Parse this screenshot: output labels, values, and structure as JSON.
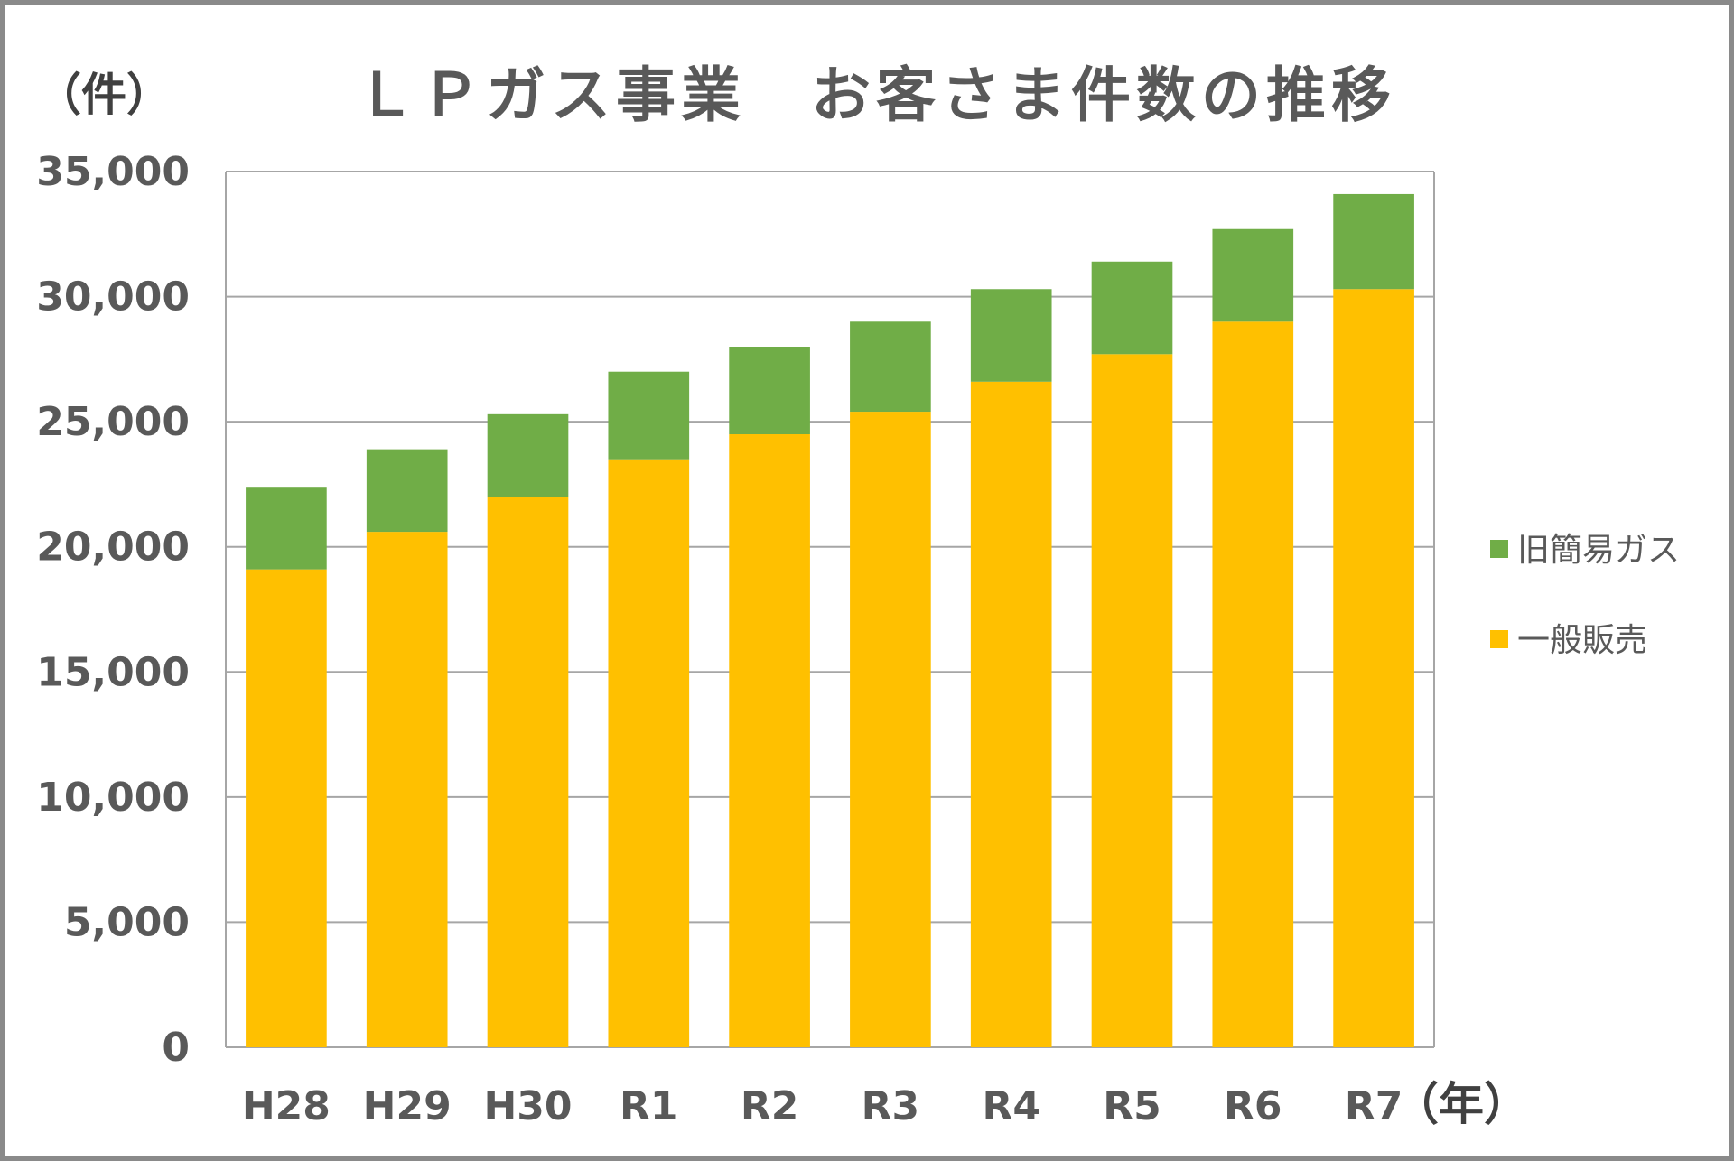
{
  "chart_data": {
    "type": "bar",
    "stacked": true,
    "title": "ＬＰガス事業　お客さま件数の推移",
    "ylabel": "（件）",
    "xlabel": "（年）",
    "ylim": [
      0,
      35000
    ],
    "yticks": [
      0,
      5000,
      10000,
      15000,
      20000,
      25000,
      30000,
      35000
    ],
    "ytick_labels": [
      "0",
      "5,000",
      "10,000",
      "15,000",
      "20,000",
      "25,000",
      "30,000",
      "35,000"
    ],
    "grid": true,
    "legend_position": "right",
    "categories": [
      "H28",
      "H29",
      "H30",
      "R1",
      "R2",
      "R3",
      "R4",
      "R5",
      "R6",
      "R7"
    ],
    "series": [
      {
        "name": "一般販売",
        "color": "#FFC000",
        "values": [
          19100,
          20600,
          22000,
          23500,
          24500,
          25400,
          26600,
          27700,
          29000,
          30300
        ]
      },
      {
        "name": "旧簡易ガス",
        "color": "#70AD47",
        "values": [
          3300,
          3300,
          3300,
          3500,
          3500,
          3600,
          3700,
          3700,
          3700,
          3800
        ]
      }
    ]
  }
}
